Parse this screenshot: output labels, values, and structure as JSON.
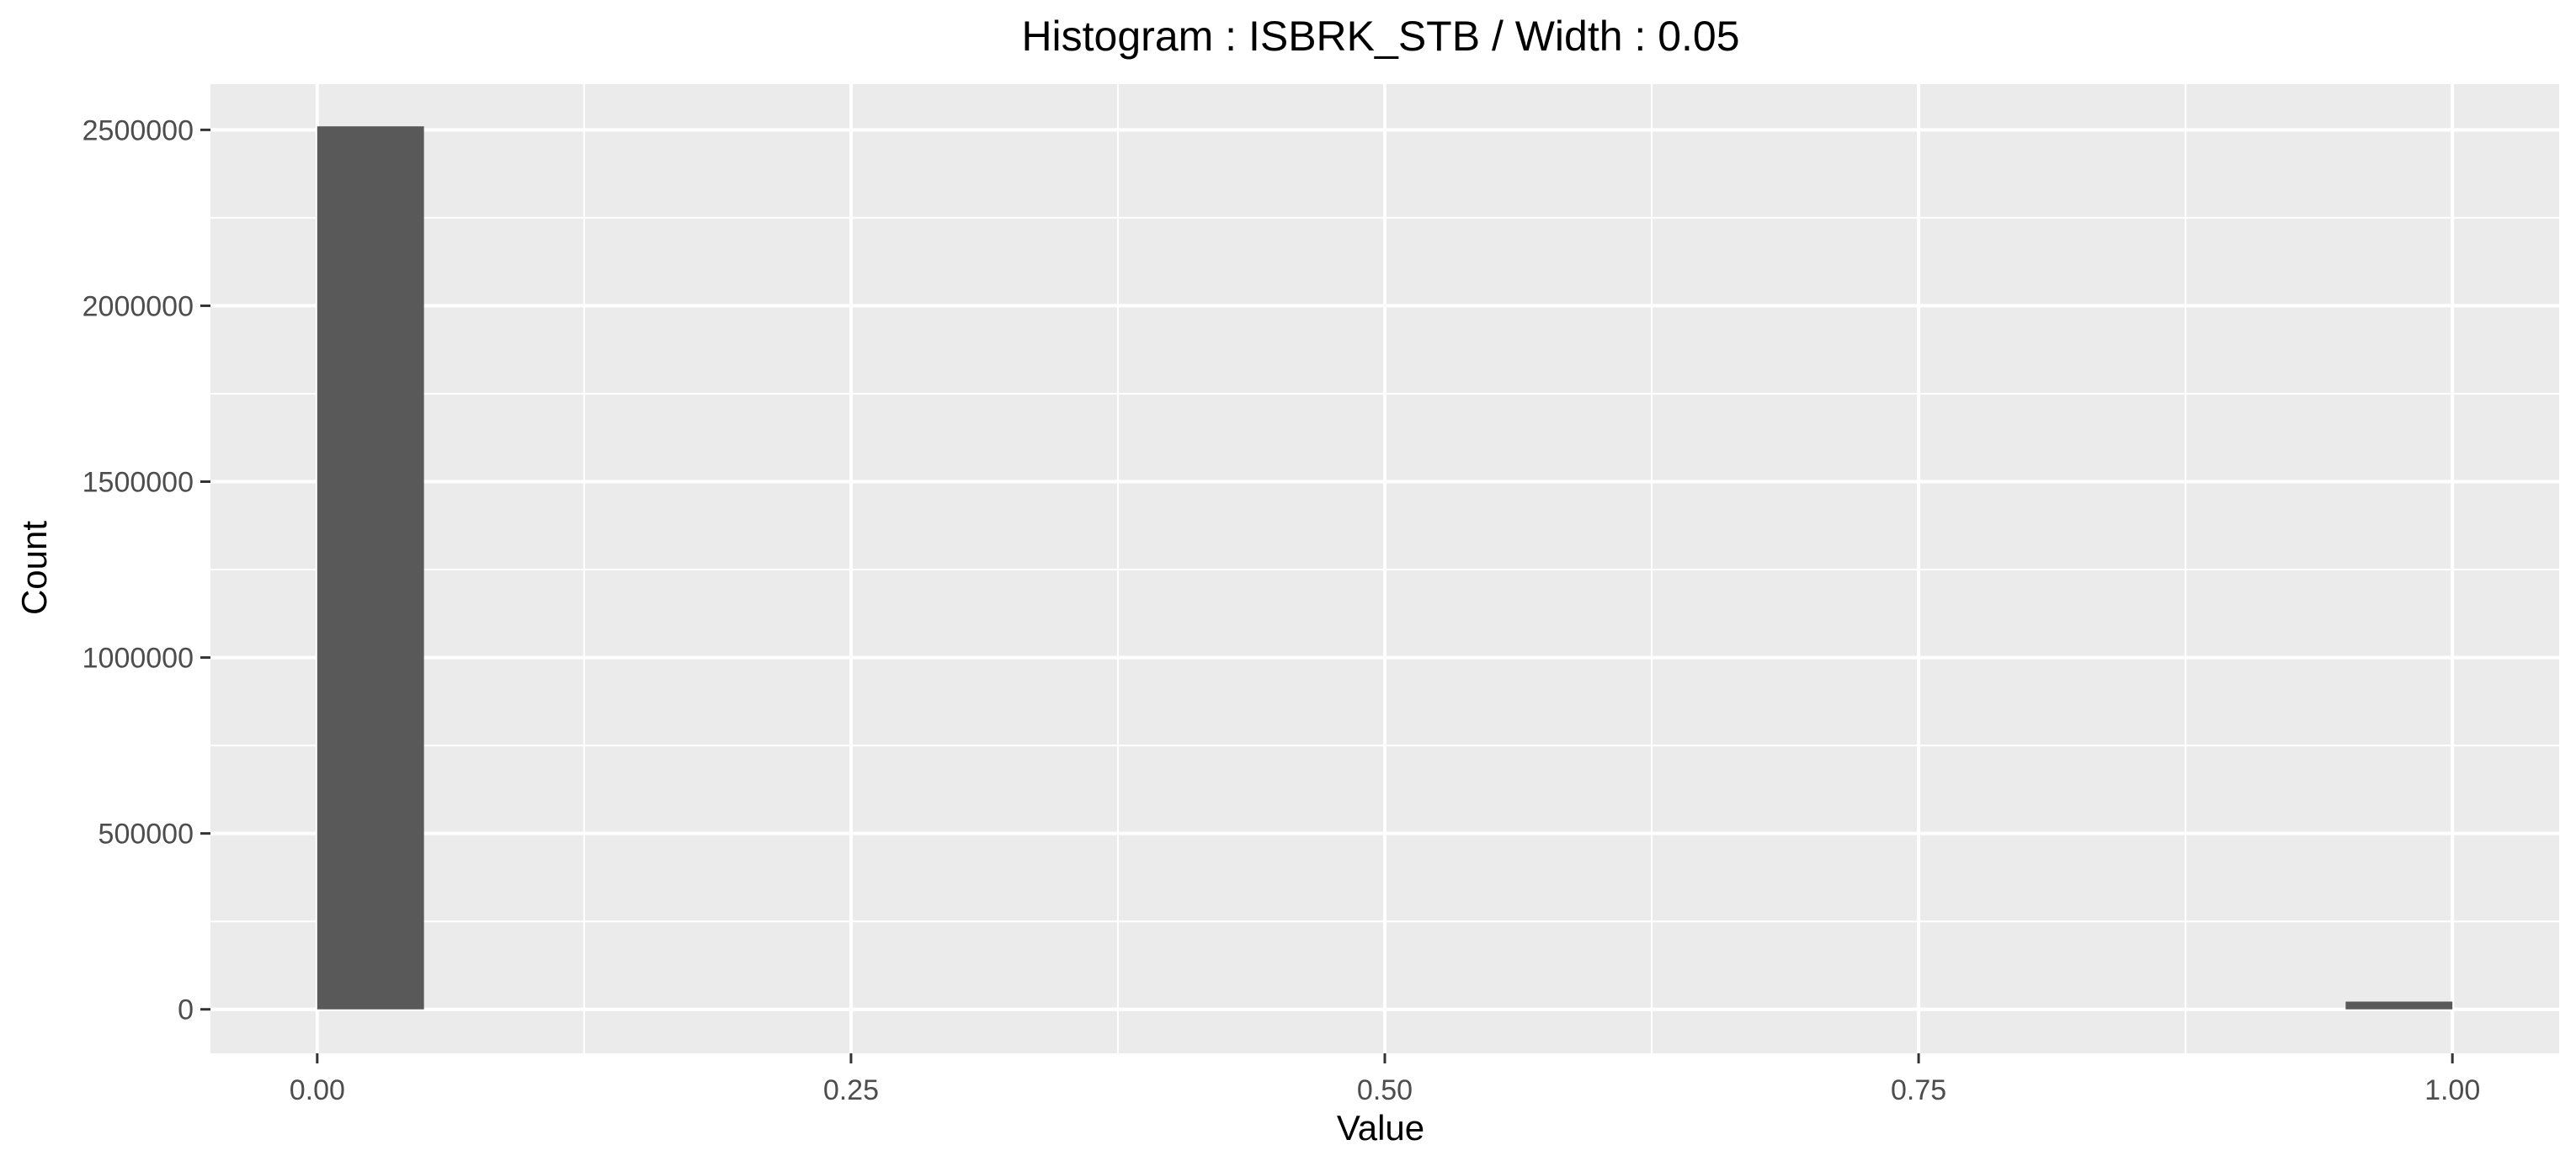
{
  "chart_data": {
    "type": "bar",
    "title": "Histogram : ISBRK_STB / Width : 0.05",
    "xlabel": "Value",
    "ylabel": "Count",
    "bin_width": 0.05,
    "bins": [
      {
        "x_start": 0.0,
        "x_end": 0.05,
        "count": 2510000
      },
      {
        "x_start": 0.95,
        "x_end": 1.0,
        "count": 22000
      }
    ],
    "xlim": [
      -0.05,
      1.05
    ],
    "ylim": [
      -125000,
      2630000
    ],
    "x_ticks": [
      0.0,
      0.25,
      0.5,
      0.75,
      1.0
    ],
    "x_tick_labels": [
      "0.00",
      "0.25",
      "0.50",
      "0.75",
      "1.00"
    ],
    "y_ticks": [
      0,
      500000,
      1000000,
      1500000,
      2000000,
      2500000
    ],
    "y_tick_labels": [
      "0",
      "500000",
      "1000000",
      "1500000",
      "2000000",
      "2500000"
    ],
    "grid": true,
    "legend": "none",
    "colors": {
      "bar_fill": "#595959",
      "panel_background": "#ebebeb",
      "grid_line": "#ffffff",
      "tick_label": "#4d4d4d"
    }
  }
}
